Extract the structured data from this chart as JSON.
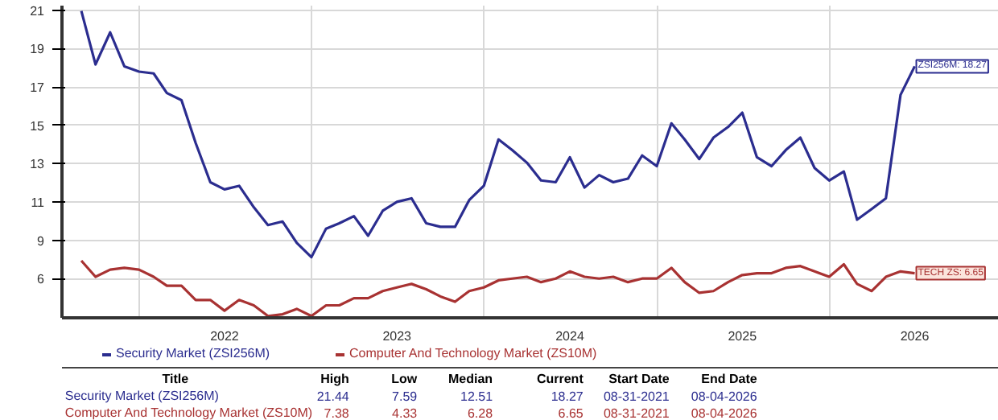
{
  "chart_data": {
    "type": "line",
    "x": [
      "2021-09",
      "2021-10",
      "2021-11",
      "2021-12",
      "2022-01",
      "2022-02",
      "2022-03",
      "2022-04",
      "2022-05",
      "2022-06",
      "2022-07",
      "2022-08",
      "2022-09",
      "2022-10",
      "2022-11",
      "2022-12",
      "2023-01",
      "2023-02",
      "2023-03",
      "2023-04",
      "2023-05",
      "2023-06",
      "2023-07",
      "2023-08",
      "2023-09",
      "2023-10",
      "2023-11",
      "2023-12",
      "2024-01",
      "2024-02",
      "2024-03",
      "2024-04",
      "2024-05",
      "2024-06",
      "2024-07",
      "2024-08",
      "2024-09",
      "2024-10",
      "2024-11",
      "2024-12",
      "2025-01",
      "2025-02",
      "2025-03",
      "2025-04",
      "2025-05",
      "2025-06",
      "2025-07",
      "2025-08",
      "2025-09",
      "2025-10",
      "2025-11",
      "2025-12",
      "2026-01",
      "2026-02",
      "2026-03",
      "2026-04",
      "2026-05",
      "2026-06",
      "2026-07"
    ],
    "series": [
      {
        "name": "Security Market (ZSI256M)",
        "color": "#2b2d8f",
        "values": [
          21.4,
          18.4,
          20.2,
          18.3,
          18.0,
          17.9,
          16.8,
          16.4,
          14.0,
          11.8,
          11.4,
          11.6,
          10.4,
          9.4,
          9.6,
          8.4,
          7.6,
          9.2,
          9.5,
          9.9,
          8.8,
          10.2,
          10.7,
          10.9,
          9.5,
          9.3,
          9.3,
          10.8,
          11.6,
          14.2,
          13.6,
          12.9,
          11.9,
          11.8,
          13.2,
          11.5,
          12.2,
          11.8,
          12.0,
          13.3,
          12.7,
          15.1,
          14.2,
          13.1,
          14.3,
          14.9,
          15.7,
          13.2,
          12.7,
          13.6,
          14.3,
          12.6,
          11.9,
          12.4,
          9.7,
          10.3,
          10.9,
          16.7,
          18.3
        ]
      },
      {
        "name": "Computer And Technology Market (ZS10M)",
        "color": "#a83232",
        "values": [
          7.4,
          6.5,
          6.9,
          7.0,
          6.9,
          6.5,
          6.0,
          6.0,
          5.2,
          5.2,
          4.6,
          5.2,
          4.9,
          4.3,
          4.4,
          4.7,
          4.3,
          4.9,
          4.9,
          5.3,
          5.3,
          5.7,
          5.9,
          6.1,
          5.8,
          5.4,
          5.1,
          5.7,
          5.9,
          6.3,
          6.4,
          6.5,
          6.2,
          6.4,
          6.8,
          6.5,
          6.4,
          6.5,
          6.2,
          6.4,
          6.4,
          7.0,
          6.2,
          5.6,
          5.7,
          6.2,
          6.6,
          6.7,
          6.7,
          7.0,
          7.1,
          6.8,
          6.5,
          7.2,
          6.1,
          5.7,
          6.5,
          6.8,
          6.7
        ]
      }
    ],
    "xlim": [
      "2021-07-22",
      "2026-12-26"
    ],
    "xticks": [
      {
        "value": "2022-01",
        "label": null
      },
      {
        "value": "2022-07",
        "label": "2022"
      },
      {
        "value": "2023-01",
        "label": null
      },
      {
        "value": "2023-07",
        "label": "2023"
      },
      {
        "value": "2024-01",
        "label": null
      },
      {
        "value": "2024-07",
        "label": "2024"
      },
      {
        "value": "2025-01",
        "label": null
      },
      {
        "value": "2025-07",
        "label": "2025"
      },
      {
        "value": "2026-01",
        "label": null
      },
      {
        "value": "2026-07",
        "label": "2026"
      }
    ],
    "ylim": [
      4.2,
      21.7
    ],
    "yticks": [
      {
        "value": 21.44,
        "label": "21"
      },
      {
        "value": 19.29,
        "label": "19"
      },
      {
        "value": 17.14,
        "label": "17"
      },
      {
        "value": 14.99,
        "label": "15"
      },
      {
        "value": 12.84,
        "label": "13"
      },
      {
        "value": 10.69,
        "label": "11"
      },
      {
        "value": 8.54,
        "label": "9"
      },
      {
        "value": 6.39,
        "label": "6"
      }
    ],
    "grid": true,
    "legend": "bottom",
    "line_style": "solid",
    "marker": "none",
    "annotations": [
      {
        "text": "ZSI256M: 18.27",
        "x": "2026-07",
        "y": 18.3
      },
      {
        "text": "TECH ZS: 6.65",
        "x": "2026-07",
        "y": 6.7
      },
      "Title",
      "High",
      "Low",
      "Median",
      "Current",
      "Start Date",
      "End Date",
      "Security Market (ZSI256M)",
      "21.44",
      "7.59",
      "12.51",
      "18.27",
      "08-31-2021",
      "08-04-2026",
      "Computer And Technology Market (ZS10M)",
      "7.38",
      "4.33",
      "6.28",
      "6.65",
      "08-31-2021",
      "08-04-2026"
    ]
  }
}
